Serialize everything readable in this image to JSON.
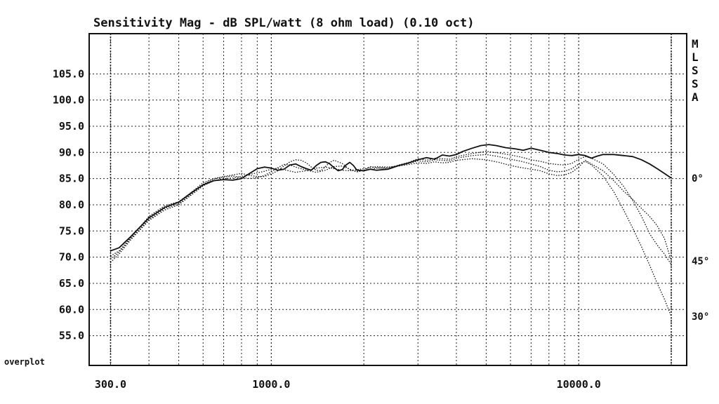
{
  "chart_data": {
    "type": "line",
    "title": "Sensitivity Mag - dB SPL/watt (8 ohm load) (0.10 oct)",
    "xscale": "log",
    "xlim": [
      290,
      20000
    ],
    "ylim": [
      52,
      110
    ],
    "grid": true,
    "x_tick_labels": [
      {
        "value": 300,
        "label": "300.0"
      },
      {
        "value": 1000,
        "label": "1000.0"
      },
      {
        "value": 10000,
        "label": "10000.0"
      }
    ],
    "y_tick_labels": [
      {
        "value": 105,
        "label": "105.0"
      },
      {
        "value": 100,
        "label": "100.0"
      },
      {
        "value": 95,
        "label": "95.0"
      },
      {
        "value": 90,
        "label": "90.0"
      },
      {
        "value": 85,
        "label": "85.0"
      },
      {
        "value": 80,
        "label": "80.0"
      },
      {
        "value": 75,
        "label": "75.0"
      },
      {
        "value": 70,
        "label": "70.0"
      },
      {
        "value": 65,
        "label": "65.0"
      },
      {
        "value": 60,
        "label": "60.0"
      },
      {
        "value": 55,
        "label": "55.0"
      }
    ],
    "overplot_label": "overplot",
    "side_label": [
      "M",
      "L",
      "S",
      "S",
      "A"
    ],
    "series": [
      {
        "end_label": "0°",
        "style": "solid",
        "points": [
          [
            300,
            71.2
          ],
          [
            320,
            71.8
          ],
          [
            350,
            74
          ],
          [
            400,
            77.5
          ],
          [
            450,
            79.5
          ],
          [
            500,
            80.5
          ],
          [
            550,
            82.3
          ],
          [
            600,
            83.8
          ],
          [
            650,
            84.6
          ],
          [
            700,
            84.8
          ],
          [
            750,
            84.7
          ],
          [
            800,
            85.0
          ],
          [
            850,
            86.0
          ],
          [
            900,
            86.9
          ],
          [
            950,
            87.2
          ],
          [
            1000,
            87.0
          ],
          [
            1050,
            86.6
          ],
          [
            1100,
            86.8
          ],
          [
            1150,
            87.6
          ],
          [
            1200,
            87.8
          ],
          [
            1250,
            87.3
          ],
          [
            1300,
            86.9
          ],
          [
            1350,
            86.6
          ],
          [
            1400,
            87.5
          ],
          [
            1450,
            88.1
          ],
          [
            1500,
            88.2
          ],
          [
            1550,
            87.8
          ],
          [
            1600,
            87.1
          ],
          [
            1650,
            86.5
          ],
          [
            1700,
            86.7
          ],
          [
            1750,
            87.6
          ],
          [
            1800,
            88.1
          ],
          [
            1850,
            87.5
          ],
          [
            1900,
            86.6
          ],
          [
            2000,
            86.5
          ],
          [
            2100,
            86.8
          ],
          [
            2200,
            86.6
          ],
          [
            2400,
            86.8
          ],
          [
            2600,
            87.5
          ],
          [
            2800,
            88
          ],
          [
            3000,
            88.6
          ],
          [
            3200,
            89
          ],
          [
            3400,
            88.7
          ],
          [
            3600,
            89.5
          ],
          [
            3800,
            89.3
          ],
          [
            4000,
            89.6
          ],
          [
            4200,
            90.2
          ],
          [
            4500,
            90.8
          ],
          [
            4800,
            91.3
          ],
          [
            5100,
            91.5
          ],
          [
            5400,
            91.3
          ],
          [
            5800,
            90.9
          ],
          [
            6200,
            90.7
          ],
          [
            6600,
            90.4
          ],
          [
            7000,
            90.8
          ],
          [
            7500,
            90.4
          ],
          [
            8000,
            90.0
          ],
          [
            8500,
            89.8
          ],
          [
            9000,
            89.5
          ],
          [
            9500,
            89.4
          ],
          [
            10000,
            89.6
          ],
          [
            10500,
            89.4
          ],
          [
            11000,
            88.9
          ],
          [
            11500,
            89.3
          ],
          [
            12000,
            89.6
          ],
          [
            13000,
            89.6
          ],
          [
            14000,
            89.4
          ],
          [
            15000,
            89.2
          ],
          [
            16000,
            88.6
          ],
          [
            17000,
            87.8
          ],
          [
            18000,
            86.9
          ],
          [
            19000,
            86.0
          ],
          [
            20000,
            85.1
          ]
        ]
      },
      {
        "style": "dotted",
        "points": [
          [
            300,
            70.2
          ],
          [
            320,
            71.2
          ],
          [
            350,
            73.8
          ],
          [
            400,
            77.8
          ],
          [
            450,
            79.8
          ],
          [
            500,
            80.6
          ],
          [
            550,
            82.4
          ],
          [
            600,
            84.2
          ],
          [
            650,
            85.0
          ],
          [
            700,
            85.4
          ],
          [
            750,
            85.7
          ],
          [
            800,
            86.0
          ],
          [
            850,
            85.6
          ],
          [
            900,
            85.4
          ],
          [
            950,
            85.4
          ],
          [
            1000,
            85.9
          ],
          [
            1050,
            86.5
          ],
          [
            1100,
            87.4
          ],
          [
            1150,
            88.2
          ],
          [
            1200,
            88.6
          ],
          [
            1250,
            88.5
          ],
          [
            1300,
            88.0
          ],
          [
            1350,
            87.2
          ],
          [
            1400,
            86.6
          ],
          [
            1450,
            86.5
          ],
          [
            1500,
            87.3
          ],
          [
            1550,
            88.1
          ],
          [
            1600,
            88.5
          ],
          [
            1700,
            87.9
          ],
          [
            1800,
            86.7
          ],
          [
            1900,
            86.3
          ],
          [
            2000,
            86.6
          ],
          [
            2100,
            87.3
          ],
          [
            2200,
            87.1
          ],
          [
            2400,
            86.9
          ],
          [
            2600,
            87.6
          ],
          [
            2800,
            88.1
          ],
          [
            3000,
            88.8
          ],
          [
            3200,
            88.5
          ],
          [
            3400,
            88.9
          ],
          [
            3600,
            88.8
          ],
          [
            3800,
            88.7
          ],
          [
            4000,
            89.2
          ],
          [
            4500,
            89.8
          ],
          [
            5000,
            90.2
          ],
          [
            5500,
            89.9
          ],
          [
            6000,
            89.5
          ],
          [
            6500,
            89.1
          ],
          [
            7000,
            88.6
          ],
          [
            7500,
            88.3
          ],
          [
            8000,
            87.9
          ],
          [
            8500,
            87.7
          ],
          [
            9000,
            87.6
          ],
          [
            9500,
            87.9
          ],
          [
            10000,
            88.7
          ],
          [
            10500,
            89.2
          ],
          [
            11000,
            88.9
          ],
          [
            12000,
            87.8
          ],
          [
            13000,
            85.8
          ],
          [
            14000,
            83.5
          ],
          [
            15000,
            80.8
          ],
          [
            16000,
            77.8
          ],
          [
            17000,
            74.5
          ],
          [
            18000,
            72.3
          ],
          [
            19000,
            70.6
          ],
          [
            20000,
            68.6
          ]
        ]
      },
      {
        "end_label": "30°",
        "style": "dotted",
        "points": [
          [
            300,
            69.6
          ],
          [
            320,
            71.0
          ],
          [
            350,
            73.6
          ],
          [
            400,
            77.2
          ],
          [
            450,
            79.3
          ],
          [
            500,
            80.2
          ],
          [
            550,
            82.1
          ],
          [
            600,
            83.9
          ],
          [
            650,
            84.9
          ],
          [
            700,
            85.3
          ],
          [
            750,
            85.5
          ],
          [
            800,
            85.2
          ],
          [
            850,
            85.0
          ],
          [
            900,
            85.2
          ],
          [
            950,
            85.6
          ],
          [
            1000,
            86.3
          ],
          [
            1050,
            87.1
          ],
          [
            1100,
            87.7
          ],
          [
            1150,
            87.6
          ],
          [
            1200,
            87.2
          ],
          [
            1300,
            86.6
          ],
          [
            1400,
            86.2
          ],
          [
            1500,
            86.6
          ],
          [
            1600,
            87.3
          ],
          [
            1700,
            87.4
          ],
          [
            1800,
            86.8
          ],
          [
            1900,
            86.3
          ],
          [
            2000,
            86.5
          ],
          [
            2200,
            87
          ],
          [
            2400,
            87.1
          ],
          [
            2600,
            87.5
          ],
          [
            2800,
            87.9
          ],
          [
            3000,
            88.4
          ],
          [
            3200,
            88.2
          ],
          [
            3400,
            88.6
          ],
          [
            3600,
            88.5
          ],
          [
            3800,
            88.4
          ],
          [
            4000,
            88.9
          ],
          [
            4500,
            89.4
          ],
          [
            5000,
            89.6
          ],
          [
            5500,
            89.2
          ],
          [
            6000,
            88.7
          ],
          [
            6500,
            88.3
          ],
          [
            7000,
            87.8
          ],
          [
            7500,
            87.3
          ],
          [
            8000,
            86.6
          ],
          [
            8500,
            86.3
          ],
          [
            9000,
            86.4
          ],
          [
            9500,
            86.9
          ],
          [
            10000,
            87.8
          ],
          [
            10500,
            88.3
          ],
          [
            11000,
            87.6
          ],
          [
            12000,
            85.5
          ],
          [
            13000,
            82.5
          ],
          [
            14000,
            79.0
          ],
          [
            15000,
            75.5
          ],
          [
            16000,
            72.0
          ],
          [
            17000,
            68.5
          ],
          [
            18000,
            65.0
          ],
          [
            19000,
            62.0
          ],
          [
            20000,
            58.7
          ]
        ]
      },
      {
        "end_label": "45°",
        "style": "dotted",
        "points": [
          [
            300,
            69.0
          ],
          [
            320,
            70.6
          ],
          [
            350,
            73.4
          ],
          [
            400,
            77.0
          ],
          [
            450,
            79.0
          ],
          [
            500,
            80.0
          ],
          [
            550,
            81.9
          ],
          [
            600,
            83.6
          ],
          [
            650,
            84.6
          ],
          [
            700,
            85.0
          ],
          [
            750,
            85.1
          ],
          [
            800,
            85.4
          ],
          [
            850,
            85.8
          ],
          [
            900,
            86.1
          ],
          [
            950,
            86.4
          ],
          [
            1000,
            86.8
          ],
          [
            1050,
            87.0
          ],
          [
            1100,
            86.7
          ],
          [
            1200,
            86.2
          ],
          [
            1300,
            86.5
          ],
          [
            1400,
            87.0
          ],
          [
            1500,
            87.2
          ],
          [
            1600,
            86.9
          ],
          [
            1700,
            86.6
          ],
          [
            1800,
            86.5
          ],
          [
            1900,
            86.7
          ],
          [
            2000,
            86.9
          ],
          [
            2200,
            87.3
          ],
          [
            2400,
            87.2
          ],
          [
            2600,
            87.4
          ],
          [
            2800,
            87.7
          ],
          [
            3000,
            88.0
          ],
          [
            3200,
            87.9
          ],
          [
            3400,
            88.2
          ],
          [
            3600,
            88.0
          ],
          [
            3800,
            88.1
          ],
          [
            4000,
            88.5
          ],
          [
            4500,
            88.8
          ],
          [
            5000,
            88.6
          ],
          [
            5500,
            88.1
          ],
          [
            6000,
            87.5
          ],
          [
            6500,
            87.1
          ],
          [
            7000,
            86.8
          ],
          [
            7500,
            86.5
          ],
          [
            8000,
            85.9
          ],
          [
            8500,
            85.6
          ],
          [
            9000,
            85.7
          ],
          [
            9500,
            86.2
          ],
          [
            10000,
            87.2
          ],
          [
            10500,
            88.5
          ],
          [
            11000,
            87.8
          ],
          [
            12000,
            86.5
          ],
          [
            13000,
            84.6
          ],
          [
            14000,
            82.6
          ],
          [
            15000,
            81.0
          ],
          [
            16000,
            79.3
          ],
          [
            17000,
            77.8
          ],
          [
            18000,
            76.0
          ],
          [
            19000,
            73.6
          ],
          [
            20000,
            69.3
          ]
        ]
      }
    ]
  }
}
